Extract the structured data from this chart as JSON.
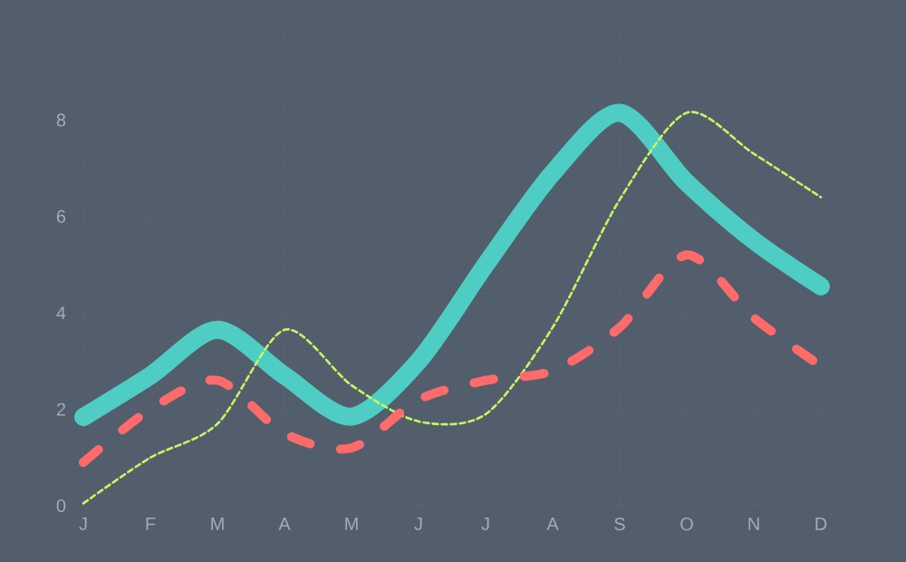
{
  "chart_data": {
    "type": "line",
    "categories": [
      "J",
      "F",
      "M",
      "A",
      "M",
      "J",
      "J",
      "A",
      "S",
      "O",
      "N",
      "D"
    ],
    "series": [
      {
        "color": "#4ecdc4",
        "line_style": "solid",
        "values": [
          1.84,
          2.7,
          3.65,
          2.7,
          1.85,
          3.0,
          5.0,
          6.9,
          8.15,
          6.7,
          5.5,
          4.55
        ]
      },
      {
        "color": "#c7f464",
        "line_style": "dashed",
        "values": [
          0.05,
          1.0,
          1.7,
          3.65,
          2.5,
          1.75,
          1.9,
          3.7,
          6.35,
          8.15,
          7.3,
          6.4
        ]
      },
      {
        "color": "#ff6b6b",
        "line_style": "dashed",
        "values": [
          0.9,
          2.0,
          2.6,
          1.5,
          1.2,
          2.2,
          2.6,
          2.8,
          3.7,
          5.2,
          3.9,
          2.9
        ]
      }
    ],
    "ylim": [
      0,
      10
    ],
    "yticks": [
      0,
      2,
      4,
      6,
      8
    ],
    "grid": true,
    "marker": "none"
  }
}
